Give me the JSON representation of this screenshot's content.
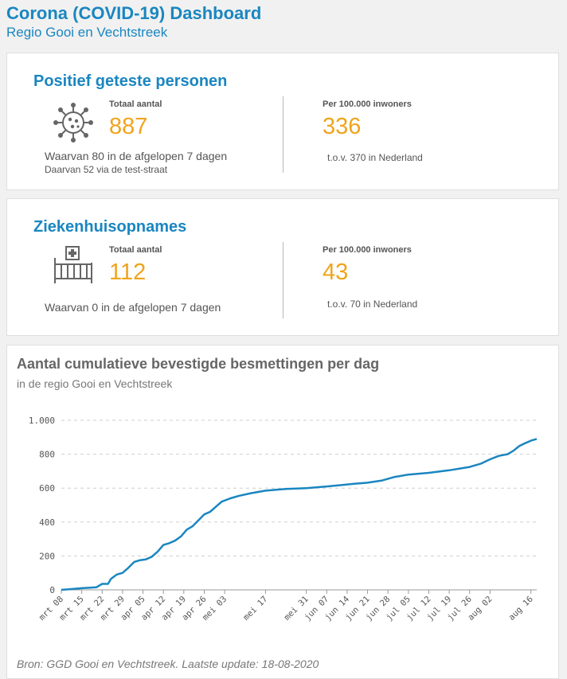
{
  "header": {
    "title": "Corona (COVID-19) Dashboard",
    "subtitle": "Regio Gooi en Vechtstreek"
  },
  "positief": {
    "title": "Positief geteste personen",
    "icon": "virus-icon",
    "total_label": "Totaal aantal",
    "total_value": "887",
    "note1": "Waarvan 80 in de afgelopen 7 dagen",
    "note2": "Daarvan 52 via de test-straat",
    "per_label": "Per 100.000 inwoners",
    "per_value": "336",
    "per_note": "t.o.v. 370 in Nederland"
  },
  "zieken": {
    "title": "Ziekenhuisopnames",
    "icon": "hospital-bed-icon",
    "total_label": "Totaal aantal",
    "total_value": "112",
    "note1": "Waarvan 0 in de afgelopen 7 dagen",
    "per_label": "Per 100.000 inwoners",
    "per_value": "43",
    "per_note": "t.o.v. 70 in Nederland"
  },
  "colors": {
    "accent": "#1a86c0",
    "number": "#f0a41c",
    "line": "#1a86c0"
  },
  "chart_data": {
    "type": "line",
    "title": "Aantal cumulatieve bevestigde besmettingen per dag",
    "subtitle": "in de regio Gooi en Vechtstreek",
    "source": "Bron: GGD Gooi en Vechtstreek. Laatste update: 18-08-2020",
    "xlabel": "",
    "ylabel": "",
    "ylim": [
      0,
      1000
    ],
    "yticks": [
      0,
      200,
      400,
      600,
      800,
      1000
    ],
    "ytick_labels": [
      "0",
      "200",
      "400",
      "600",
      "800",
      "1.000"
    ],
    "grid": true,
    "xtick_labels": [
      "mrt 08",
      "mrt 15",
      "mrt 22",
      "mrt 29",
      "apr 05",
      "apr 12",
      "apr 19",
      "apr 26",
      "mei 03",
      "mei 17",
      "mei 31",
      "jun 07",
      "jun 14",
      "jun 21",
      "jun 28",
      "jul 05",
      "jul 12",
      "jul 19",
      "jul 26",
      "aug 02",
      "aug 16"
    ],
    "xtick_dates": [
      "2020-03-08",
      "2020-03-15",
      "2020-03-22",
      "2020-03-29",
      "2020-04-05",
      "2020-04-12",
      "2020-04-19",
      "2020-04-26",
      "2020-05-03",
      "2020-05-17",
      "2020-05-31",
      "2020-06-07",
      "2020-06-14",
      "2020-06-21",
      "2020-06-28",
      "2020-07-05",
      "2020-07-12",
      "2020-07-19",
      "2020-07-26",
      "2020-08-02",
      "2020-08-16"
    ],
    "series": [
      {
        "x": [
          "2020-03-08",
          "2020-03-12",
          "2020-03-15",
          "2020-03-18",
          "2020-03-20",
          "2020-03-22",
          "2020-03-24",
          "2020-03-25",
          "2020-03-27",
          "2020-03-29",
          "2020-03-31",
          "2020-04-02",
          "2020-04-04",
          "2020-04-06",
          "2020-04-08",
          "2020-04-10",
          "2020-04-12",
          "2020-04-14",
          "2020-04-16",
          "2020-04-18",
          "2020-04-20",
          "2020-04-22",
          "2020-04-24",
          "2020-04-26",
          "2020-04-28",
          "2020-04-30",
          "2020-05-02",
          "2020-05-05",
          "2020-05-08",
          "2020-05-12",
          "2020-05-17",
          "2020-05-24",
          "2020-05-31",
          "2020-06-07",
          "2020-06-12",
          "2020-06-16",
          "2020-06-21",
          "2020-06-26",
          "2020-06-30",
          "2020-07-05",
          "2020-07-12",
          "2020-07-19",
          "2020-07-26",
          "2020-07-30",
          "2020-08-02",
          "2020-08-05",
          "2020-08-08",
          "2020-08-10",
          "2020-08-12",
          "2020-08-14",
          "2020-08-16",
          "2020-08-18"
        ],
        "values": [
          0,
          5,
          10,
          13,
          15,
          35,
          35,
          65,
          90,
          100,
          130,
          165,
          175,
          180,
          195,
          225,
          265,
          275,
          290,
          315,
          355,
          375,
          410,
          445,
          460,
          490,
          520,
          540,
          555,
          570,
          585,
          595,
          600,
          610,
          618,
          625,
          632,
          645,
          665,
          680,
          690,
          705,
          725,
          745,
          770,
          790,
          800,
          820,
          848,
          865,
          880,
          890
        ]
      }
    ]
  }
}
